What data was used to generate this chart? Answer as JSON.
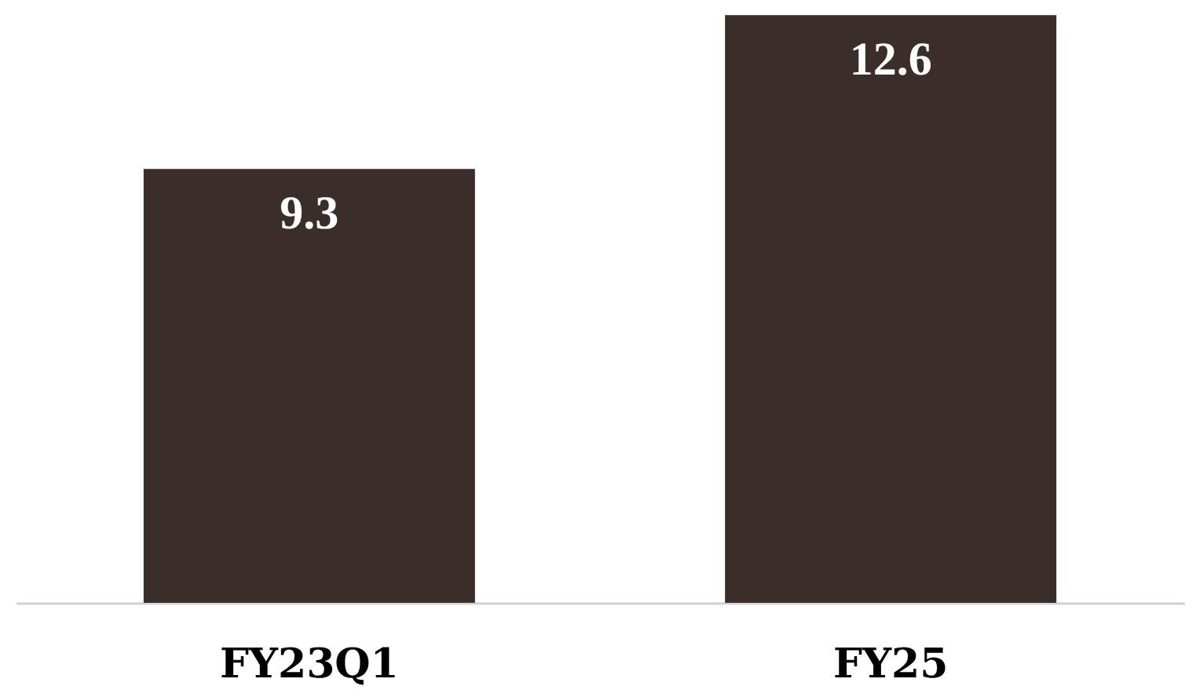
{
  "chart_data": {
    "type": "bar",
    "categories": [
      "FY23Q1",
      "FY25"
    ],
    "values": [
      9.3,
      12.6
    ],
    "color": "#3b2e2a",
    "data_labels": true
  }
}
